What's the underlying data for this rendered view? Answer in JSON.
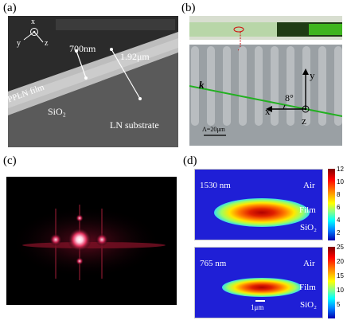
{
  "labels": {
    "a": "(a)",
    "b": "(b)",
    "c": "(c)",
    "d": "(d)"
  },
  "panel_a": {
    "axis_x": "x",
    "axis_y": "y",
    "axis_z": "z",
    "film_thickness": "700nm",
    "total_thickness": "1.92μm",
    "film_label": "PPLN film",
    "oxide_label": "SiO₂",
    "substrate_label": "LN substrate"
  },
  "panel_b": {
    "axis_x": "x",
    "axis_y": "y",
    "axis_z": "z",
    "k_label": "k",
    "angle_label": "8°",
    "period_label": "Λ=20μm"
  },
  "panel_d": {
    "mode1": {
      "wavelength": "1530 nm",
      "air": "Air",
      "film": "Film",
      "oxide": "SiO₂",
      "colorbar_ticks": [
        "12",
        "10",
        "8",
        "6",
        "4",
        "2"
      ]
    },
    "mode2": {
      "wavelength": "765 nm",
      "air": "Air",
      "film": "Film",
      "oxide": "SiO₂",
      "scale": "1μm",
      "colorbar_ticks": [
        "25",
        "20",
        "15",
        "10",
        "5"
      ]
    }
  }
}
